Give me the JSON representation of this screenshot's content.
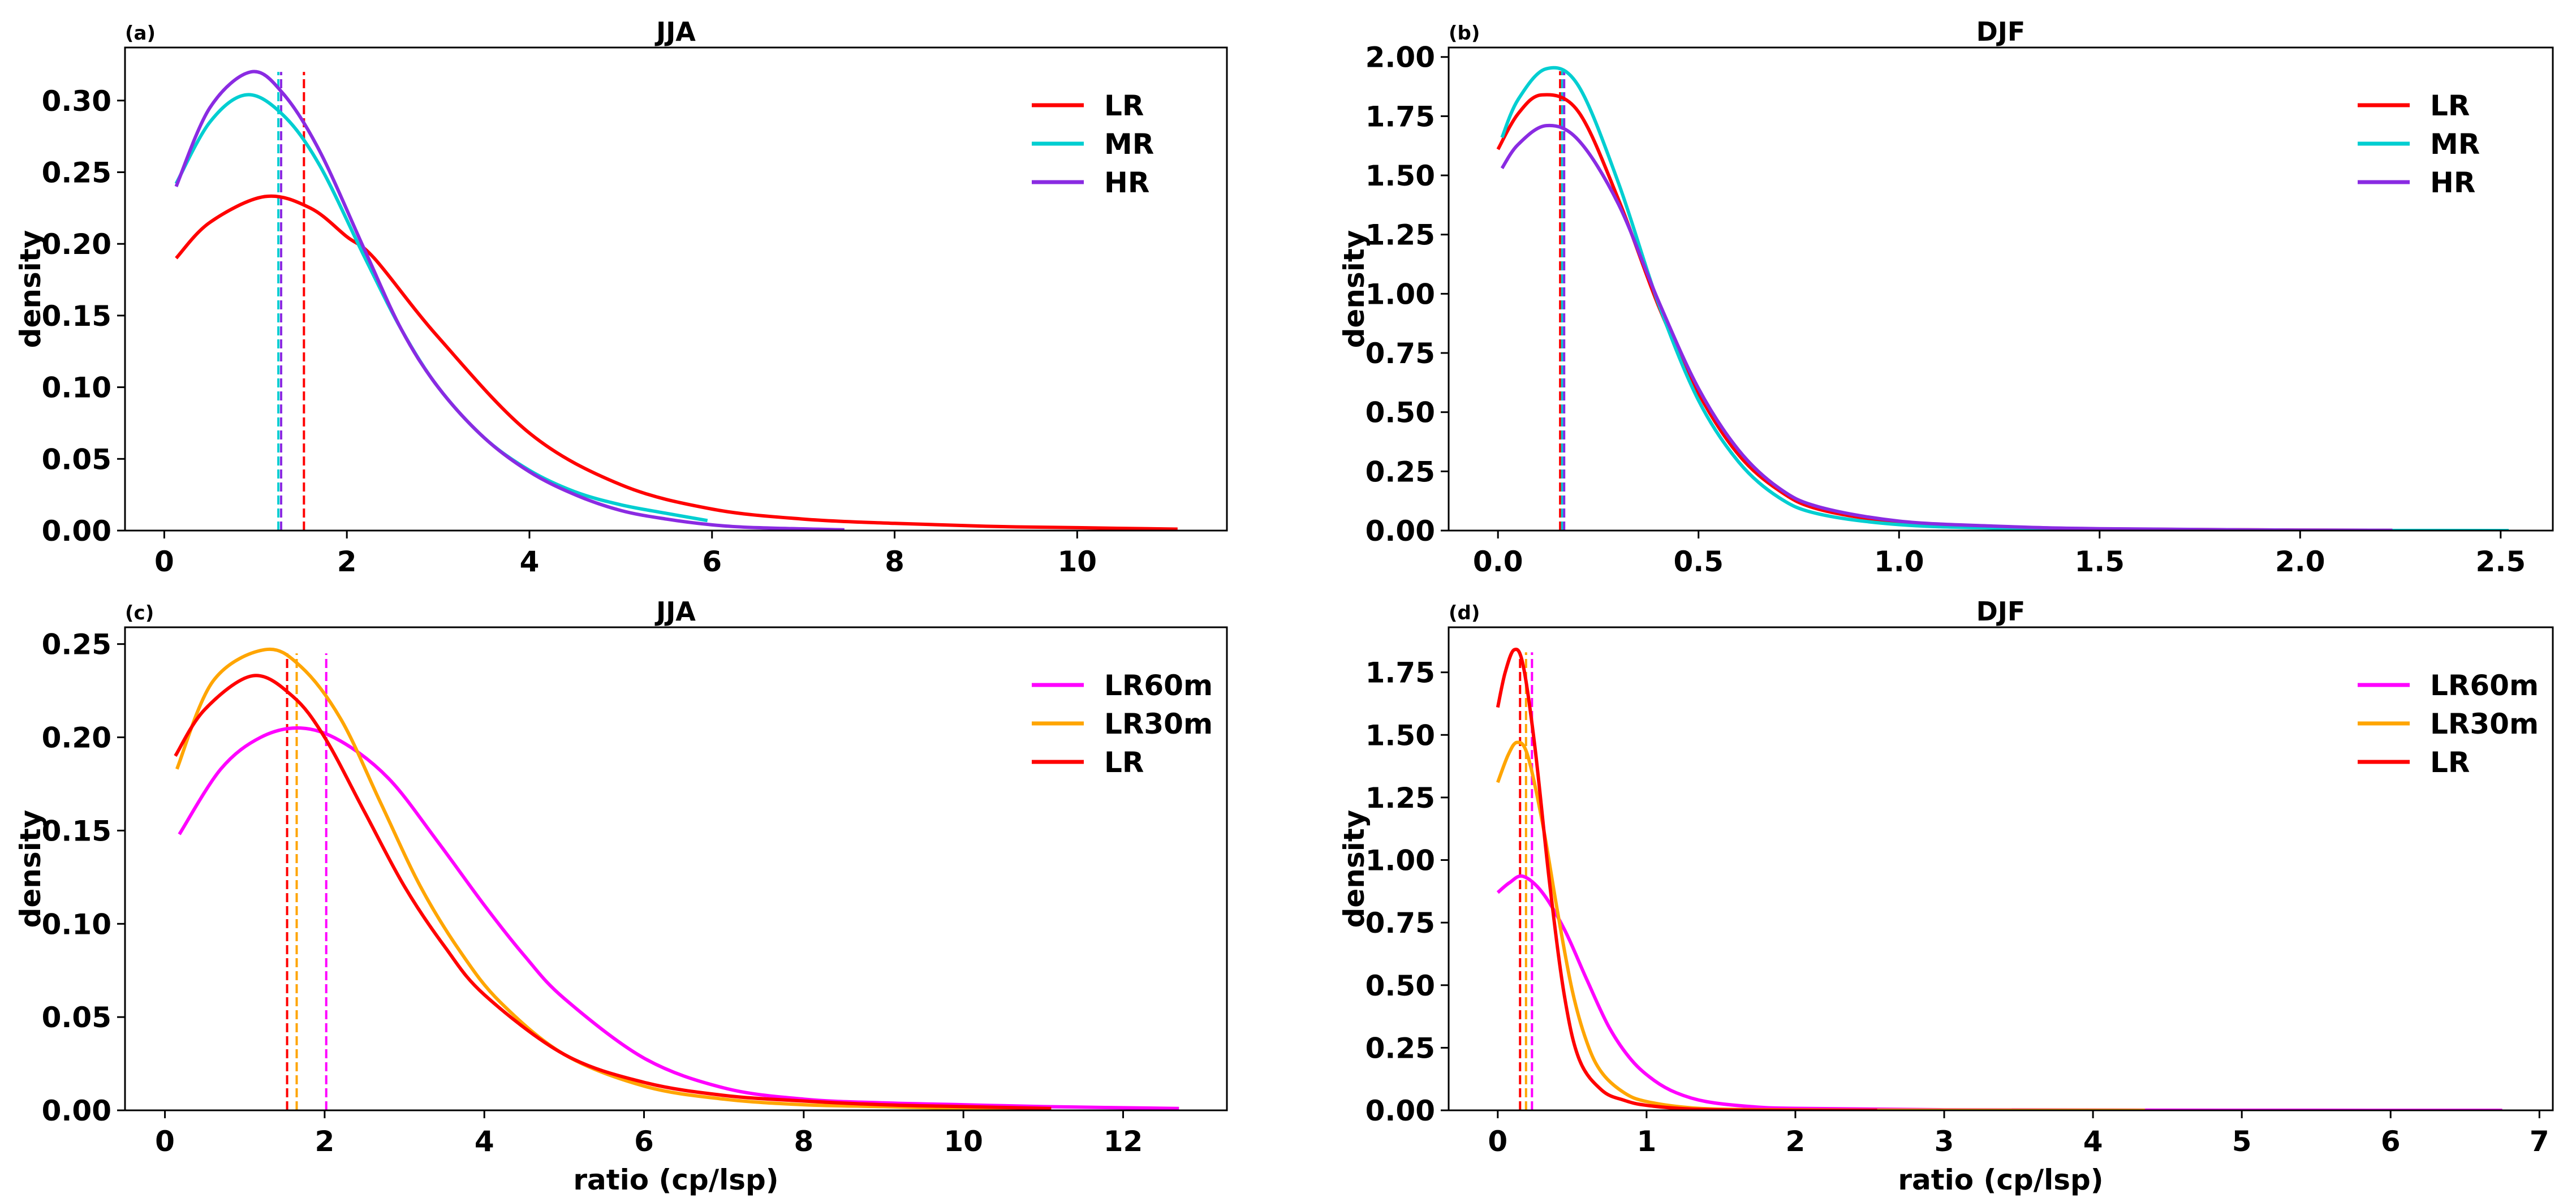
{
  "chart_data": [
    {
      "type": "line",
      "panel_label": "(a)",
      "title": "JJA",
      "xlabel": "",
      "ylabel": "density",
      "xlim": [
        -0.43,
        11.64
      ],
      "ylim": [
        0,
        0.337
      ],
      "xticks": [
        0,
        2,
        4,
        6,
        8,
        10
      ],
      "xtick_labels": [
        "0",
        "2",
        "4",
        "6",
        "8",
        "10"
      ],
      "yticks": [
        0,
        0.05,
        0.1,
        0.15,
        0.2,
        0.25,
        0.3
      ],
      "ytick_labels": [
        "0.00",
        "0.05",
        "0.10",
        "0.15",
        "0.20",
        "0.25",
        "0.30"
      ],
      "legend_position": "top-right",
      "median_line_top": 0.32,
      "series": [
        {
          "name": "LR",
          "color": "#ff0000",
          "median": 1.53,
          "x": [
            0.13,
            0.5,
            1.1,
            1.6,
            2.0,
            2.3,
            3.0,
            4.0,
            5.0,
            6.0,
            7.0,
            8.0,
            9.0,
            10.0,
            11.1
          ],
          "y": [
            0.19,
            0.215,
            0.233,
            0.225,
            0.205,
            0.19,
            0.135,
            0.068,
            0.032,
            0.015,
            0.008,
            0.005,
            0.003,
            0.002,
            0.001
          ]
        },
        {
          "name": "MR",
          "color": "#00ced1",
          "median": 1.25,
          "x": [
            0.13,
            0.5,
            0.9,
            1.3,
            1.7,
            2.2,
            2.6,
            3.0,
            3.5,
            4.0,
            4.5,
            5.0,
            5.5,
            5.95
          ],
          "y": [
            0.242,
            0.285,
            0.304,
            0.29,
            0.255,
            0.19,
            0.14,
            0.1,
            0.065,
            0.042,
            0.027,
            0.018,
            0.012,
            0.007
          ]
        },
        {
          "name": "HR",
          "color": "#8a2be2",
          "median": 1.28,
          "x": [
            0.13,
            0.5,
            0.95,
            1.3,
            1.7,
            2.2,
            2.6,
            3.0,
            3.5,
            4.0,
            4.5,
            5.0,
            5.5,
            6.0,
            6.5,
            7.45
          ],
          "y": [
            0.24,
            0.295,
            0.32,
            0.305,
            0.265,
            0.195,
            0.14,
            0.1,
            0.065,
            0.041,
            0.025,
            0.014,
            0.008,
            0.004,
            0.002,
            0.0005
          ]
        }
      ]
    },
    {
      "type": "line",
      "panel_label": "(b)",
      "title": "DJF",
      "xlabel": "",
      "ylabel": "density",
      "xlim": [
        -0.123,
        2.63
      ],
      "ylim": [
        0,
        2.04
      ],
      "xticks": [
        0,
        0.5,
        1,
        1.5,
        2,
        2.5
      ],
      "xtick_labels": [
        "0.0",
        "0.5",
        "1.0",
        "1.5",
        "2.0",
        "2.5"
      ],
      "yticks": [
        0,
        0.25,
        0.5,
        0.75,
        1,
        1.25,
        1.5,
        1.75,
        2
      ],
      "ytick_labels": [
        "0.00",
        "0.25",
        "0.50",
        "0.75",
        "1.00",
        "1.25",
        "1.50",
        "1.75",
        "2.00"
      ],
      "legend_position": "top-right",
      "median_line_top": 1.94,
      "series": [
        {
          "name": "LR",
          "color": "#ff0000",
          "median": 0.155,
          "x": [
            0.0,
            0.05,
            0.11,
            0.2,
            0.3,
            0.4,
            0.5,
            0.6,
            0.7,
            0.8,
            1.0,
            1.25,
            1.5,
            2.0,
            2.23
          ],
          "y": [
            1.61,
            1.76,
            1.84,
            1.77,
            1.4,
            0.95,
            0.58,
            0.32,
            0.17,
            0.09,
            0.035,
            0.015,
            0.007,
            0.002,
            0.001
          ]
        },
        {
          "name": "MR",
          "color": "#00ced1",
          "median": 0.16,
          "x": [
            0.01,
            0.05,
            0.12,
            0.2,
            0.3,
            0.4,
            0.5,
            0.6,
            0.7,
            0.8,
            1.0,
            1.25,
            1.5,
            2.0,
            2.52
          ],
          "y": [
            1.66,
            1.82,
            1.95,
            1.88,
            1.47,
            0.96,
            0.55,
            0.29,
            0.14,
            0.07,
            0.025,
            0.01,
            0.004,
            0.001,
            0.0
          ]
        },
        {
          "name": "HR",
          "color": "#8a2be2",
          "median": 0.165,
          "x": [
            0.01,
            0.05,
            0.12,
            0.2,
            0.3,
            0.4,
            0.5,
            0.6,
            0.7,
            0.8,
            1.0,
            1.25,
            1.5,
            2.0,
            2.23
          ],
          "y": [
            1.53,
            1.63,
            1.71,
            1.65,
            1.38,
            0.97,
            0.6,
            0.34,
            0.18,
            0.1,
            0.04,
            0.018,
            0.008,
            0.002,
            0.001
          ]
        }
      ]
    },
    {
      "type": "line",
      "panel_label": "(c)",
      "title": "JJA",
      "xlabel": "ratio (cp/lsp)",
      "ylabel": "density",
      "xlim": [
        -0.5,
        13.3
      ],
      "ylim": [
        0,
        0.259
      ],
      "xticks": [
        0,
        2,
        4,
        6,
        8,
        10,
        12
      ],
      "xtick_labels": [
        "0",
        "2",
        "4",
        "6",
        "8",
        "10",
        "12"
      ],
      "yticks": [
        0,
        0.05,
        0.1,
        0.15,
        0.2,
        0.25
      ],
      "ytick_labels": [
        "0.00",
        "0.05",
        "0.10",
        "0.15",
        "0.20",
        "0.25"
      ],
      "legend_position": "top-right",
      "median_line_top": 0.245,
      "series": [
        {
          "name": "LR60m",
          "color": "#ff00ff",
          "median": 2.02,
          "x": [
            0.18,
            0.7,
            1.2,
            1.7,
            2.2,
            2.8,
            3.4,
            4.0,
            4.5,
            5.0,
            6.0,
            7.0,
            8.0,
            9.0,
            10.0,
            11.0,
            12.7
          ],
          "y": [
            0.148,
            0.183,
            0.2,
            0.205,
            0.198,
            0.178,
            0.145,
            0.11,
            0.083,
            0.06,
            0.028,
            0.012,
            0.006,
            0.004,
            0.003,
            0.002,
            0.001
          ]
        },
        {
          "name": "LR30m",
          "color": "#ffa500",
          "median": 1.65,
          "x": [
            0.15,
            0.6,
            1.25,
            1.7,
            2.2,
            2.7,
            3.2,
            3.7,
            4.2,
            5.0,
            6.0,
            7.0,
            8.0,
            9.0,
            10.0,
            11.1
          ],
          "y": [
            0.183,
            0.23,
            0.247,
            0.238,
            0.21,
            0.165,
            0.12,
            0.085,
            0.058,
            0.03,
            0.013,
            0.006,
            0.003,
            0.002,
            0.001,
            0.0005
          ]
        },
        {
          "name": "LR",
          "color": "#ff0000",
          "median": 1.53,
          "x": [
            0.13,
            0.5,
            1.1,
            1.6,
            2.0,
            2.5,
            3.0,
            3.5,
            4.0,
            5.0,
            6.0,
            7.0,
            8.0,
            9.0,
            10.0,
            11.1
          ],
          "y": [
            0.19,
            0.215,
            0.233,
            0.222,
            0.2,
            0.16,
            0.12,
            0.088,
            0.062,
            0.03,
            0.015,
            0.008,
            0.005,
            0.003,
            0.002,
            0.001
          ]
        }
      ]
    },
    {
      "type": "line",
      "panel_label": "(d)",
      "title": "DJF",
      "xlabel": "ratio (cp/lsp)",
      "ylabel": "density",
      "xlim": [
        -0.33,
        7.09
      ],
      "ylim": [
        0,
        1.93
      ],
      "xticks": [
        0,
        1,
        2,
        3,
        4,
        5,
        6,
        7
      ],
      "xtick_labels": [
        "0",
        "1",
        "2",
        "3",
        "4",
        "5",
        "6",
        "7"
      ],
      "yticks": [
        0,
        0.25,
        0.5,
        0.75,
        1,
        1.25,
        1.5,
        1.75
      ],
      "ytick_labels": [
        "0.00",
        "0.25",
        "0.50",
        "0.75",
        "1.00",
        "1.25",
        "1.50",
        "1.75"
      ],
      "legend_position": "top-right",
      "median_line_top": 1.83,
      "series": [
        {
          "name": "LR60m",
          "color": "#ff00ff",
          "median": 0.23,
          "x": [
            0.0,
            0.08,
            0.17,
            0.3,
            0.45,
            0.6,
            0.75,
            0.9,
            1.05,
            1.2,
            1.4,
            1.7,
            2.0,
            3.0,
            4.5,
            6.75
          ],
          "y": [
            0.87,
            0.91,
            0.935,
            0.87,
            0.72,
            0.52,
            0.33,
            0.2,
            0.12,
            0.07,
            0.035,
            0.015,
            0.008,
            0.002,
            0.0005,
            0.0
          ]
        },
        {
          "name": "LR30m",
          "color": "#ffa500",
          "median": 0.19,
          "x": [
            0.0,
            0.07,
            0.13,
            0.2,
            0.3,
            0.4,
            0.5,
            0.6,
            0.7,
            0.85,
            1.0,
            1.3,
            1.7,
            2.5,
            4.35
          ],
          "y": [
            1.31,
            1.42,
            1.47,
            1.42,
            1.15,
            0.8,
            0.48,
            0.27,
            0.15,
            0.07,
            0.035,
            0.01,
            0.003,
            0.001,
            0.0
          ]
        },
        {
          "name": "LR",
          "color": "#ff0000",
          "median": 0.15,
          "x": [
            0.0,
            0.05,
            0.11,
            0.17,
            0.25,
            0.35,
            0.45,
            0.55,
            0.7,
            0.85,
            1.0,
            1.3,
            1.7,
            2.55
          ],
          "y": [
            1.61,
            1.75,
            1.84,
            1.78,
            1.45,
            0.9,
            0.45,
            0.2,
            0.08,
            0.04,
            0.02,
            0.005,
            0.001,
            0.0
          ]
        }
      ]
    }
  ]
}
